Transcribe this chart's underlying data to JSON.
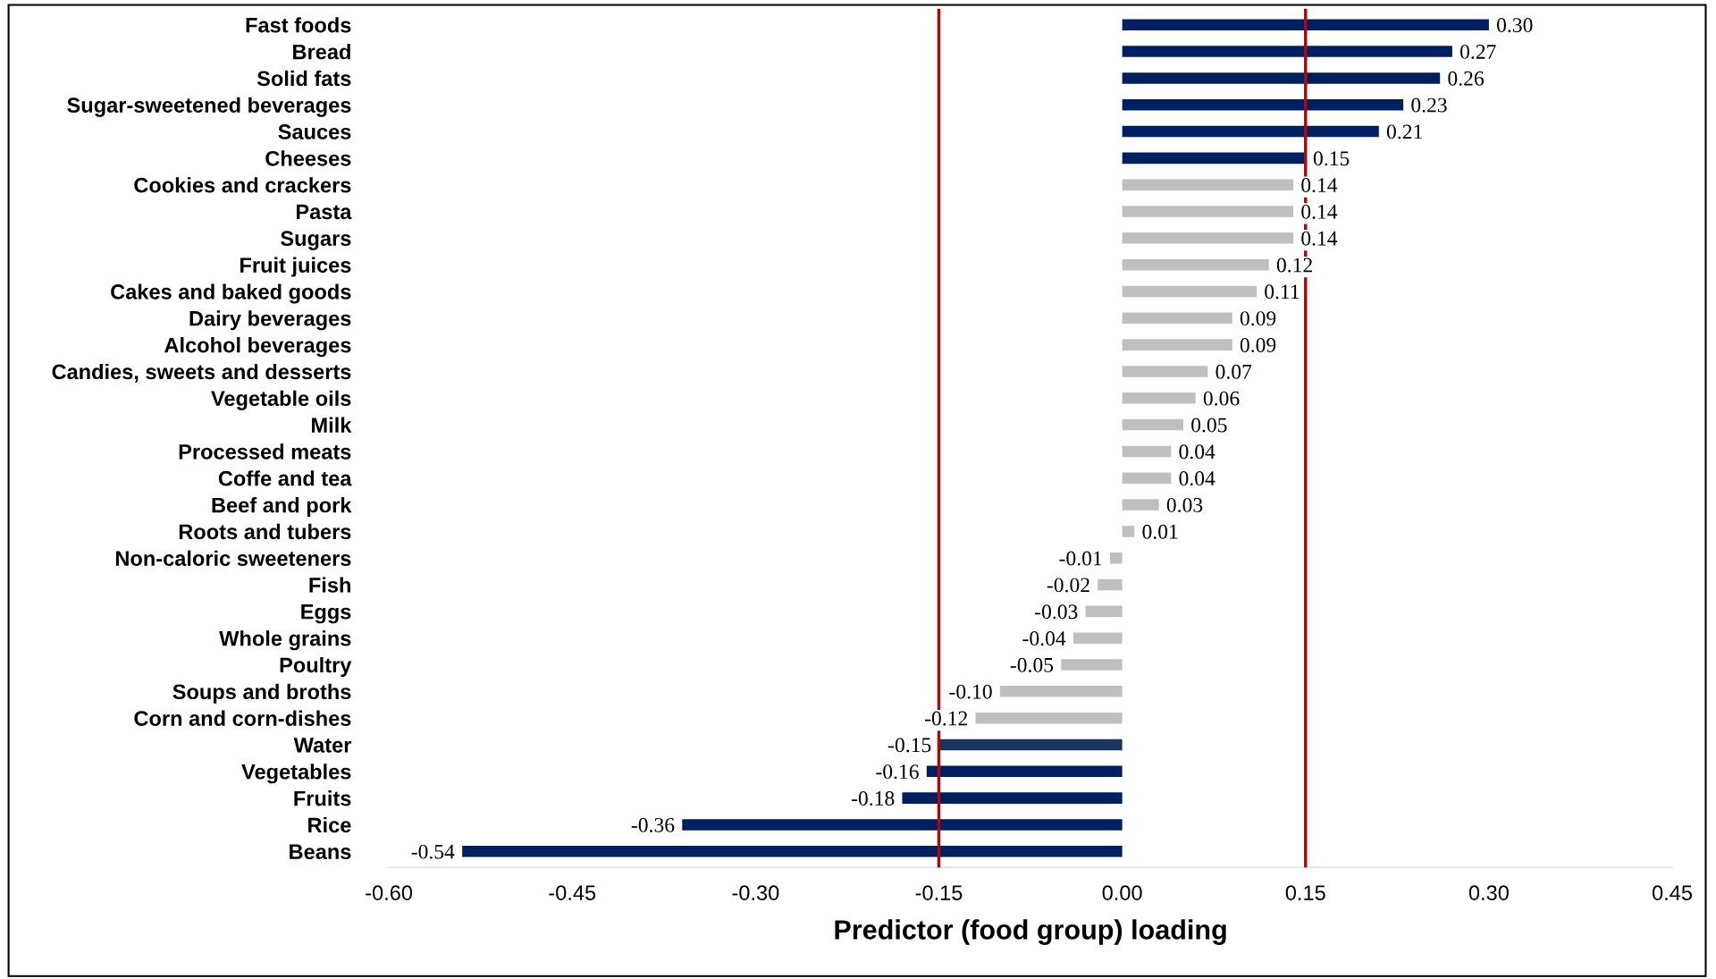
{
  "chart_data": {
    "type": "bar",
    "orientation": "horizontal",
    "xlabel": "Predictor (food group) loading",
    "categories": [
      "Fast foods",
      "Bread",
      "Solid fats",
      "Sugar-sweetened beverages",
      "Sauces",
      "Cheeses",
      "Cookies and crackers",
      "Pasta",
      "Sugars",
      "Fruit juices",
      "Cakes and baked goods",
      "Dairy beverages",
      "Alcohol beverages",
      "Candies, sweets and desserts",
      "Vegetable oils",
      "Milk",
      "Processed meats",
      "Coffe and tea",
      "Beef and pork",
      "Roots and tubers",
      "Non-caloric sweeteners",
      "Fish",
      "Eggs",
      "Whole grains",
      "Poultry",
      "Soups and broths",
      "Corn and corn-dishes",
      "Water",
      "Vegetables",
      "Fruits",
      "Rice",
      "Beans"
    ],
    "values": [
      0.3,
      0.27,
      0.26,
      0.23,
      0.21,
      0.15,
      0.14,
      0.14,
      0.14,
      0.12,
      0.11,
      0.09,
      0.09,
      0.07,
      0.06,
      0.05,
      0.04,
      0.04,
      0.03,
      0.01,
      -0.01,
      -0.02,
      -0.03,
      -0.04,
      -0.05,
      -0.1,
      -0.12,
      -0.15,
      -0.16,
      -0.18,
      -0.36,
      -0.54
    ],
    "colors": [
      "#001f5f",
      "#001f5f",
      "#001f5f",
      "#001f5f",
      "#001f5f",
      "#001f5f",
      "#bfbfbf",
      "#bfbfbf",
      "#bfbfbf",
      "#bfbfbf",
      "#bfbfbf",
      "#bfbfbf",
      "#bfbfbf",
      "#bfbfbf",
      "#bfbfbf",
      "#bfbfbf",
      "#bfbfbf",
      "#bfbfbf",
      "#bfbfbf",
      "#bfbfbf",
      "#bfbfbf",
      "#bfbfbf",
      "#bfbfbf",
      "#bfbfbf",
      "#bfbfbf",
      "#bfbfbf",
      "#bfbfbf",
      "#1b365d",
      "#001f5f",
      "#001f5f",
      "#001f5f",
      "#001f5f"
    ],
    "value_labels": [
      "0.30",
      "0.27",
      "0.26",
      "0.23",
      "0.21",
      "0.15",
      "0.14",
      "0.14",
      "0.14",
      "0.12",
      "0.11",
      "0.09",
      "0.09",
      "0.07",
      "0.06",
      "0.05",
      "0.04",
      "0.04",
      "0.03",
      "0.01",
      "-0.01",
      "-0.02",
      "-0.03",
      "-0.04",
      "-0.05",
      "-0.10",
      "-0.12",
      "-0.15",
      "-0.16",
      "-0.18",
      "-0.36",
      "-0.54"
    ],
    "xlim": [
      -0.6,
      0.45
    ],
    "xticks": [
      {
        "value": -0.6,
        "label": "-0.60"
      },
      {
        "value": -0.45,
        "label": "-0.45"
      },
      {
        "value": -0.3,
        "label": "-0.30"
      },
      {
        "value": -0.15,
        "label": "-0.15"
      },
      {
        "value": 0,
        "label": "0.00"
      },
      {
        "value": 0.15,
        "label": "0.15"
      },
      {
        "value": 0.3,
        "label": "0.30"
      },
      {
        "value": 0.45,
        "label": "0.45"
      }
    ],
    "ref_lines": [
      {
        "axis": "x",
        "value": -0.15,
        "color": "#c00000"
      },
      {
        "axis": "x",
        "value": 0.15,
        "color": "#c00000"
      }
    ],
    "grid": false,
    "legend": false
  }
}
